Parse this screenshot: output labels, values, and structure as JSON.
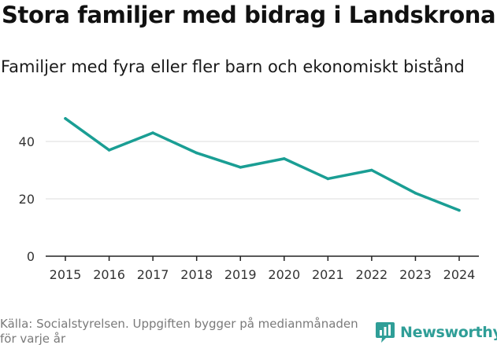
{
  "title": "Stora familjer med bidrag i Landskrona",
  "subtitle": "Familjer med fyra eller fler barn och ekonomiskt bistånd",
  "source": "Källa: Socialstyrelsen. Uppgiften bygger på medianmånaden för varje år",
  "brand": {
    "name": "Newsworthy",
    "logo_icon": "newsworthy-logo-icon"
  },
  "colors": {
    "line": "#1a9e94",
    "grid": "#dddddd",
    "axis": "#222222",
    "brand": "#2f9e97",
    "source_text": "#7a7a7a"
  },
  "chart_data": {
    "type": "line",
    "title": "Stora familjer med bidrag i Landskrona",
    "subtitle": "Familjer med fyra eller fler barn och ekonomiskt bistånd",
    "xlabel": "",
    "ylabel": "",
    "x": [
      "2015",
      "2016",
      "2017",
      "2018",
      "2019",
      "2020",
      "2021",
      "2022",
      "2023",
      "2024"
    ],
    "series": [
      {
        "name": "Familjer",
        "values": [
          48,
          37,
          43,
          36,
          31,
          34,
          27,
          30,
          22,
          16
        ]
      }
    ],
    "ylim": [
      0,
      52
    ],
    "yticks": [
      0,
      20,
      40
    ],
    "grid": true,
    "legend": "none"
  }
}
